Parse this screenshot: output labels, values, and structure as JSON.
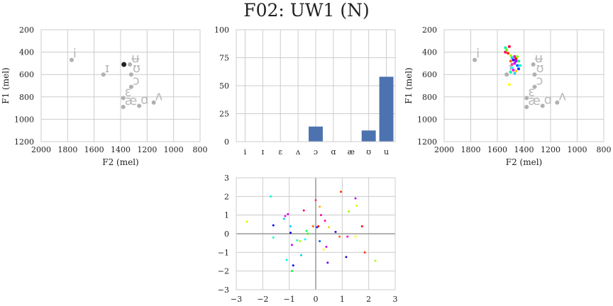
{
  "title": "F02: UW1 (N)",
  "chart_data": [
    {
      "type": "scatter",
      "name": "vowel-space-left",
      "xlabel": "F2 (mel)",
      "ylabel": "F1 (mel)",
      "xlim": [
        2000,
        800
      ],
      "ylim": [
        1200,
        200
      ],
      "xticks": [
        2000,
        1800,
        1600,
        1400,
        1200,
        1000,
        800
      ],
      "yticks": [
        200,
        400,
        600,
        800,
        1000,
        1200
      ],
      "grid": true,
      "vowels": [
        {
          "label": "i",
          "f2": 1770,
          "f1": 470
        },
        {
          "label": "ɪ",
          "f2": 1530,
          "f1": 600
        },
        {
          "label": "ʉ",
          "f2": 1330,
          "f1": 510
        },
        {
          "label": "ʊ",
          "f2": 1320,
          "f1": 600
        },
        {
          "label": "ɔ",
          "f2": 1320,
          "f1": 710
        },
        {
          "label": "ɛ",
          "f2": 1380,
          "f1": 810
        },
        {
          "label": "æ",
          "f2": 1380,
          "f1": 890
        },
        {
          "label": "ɑ",
          "f2": 1260,
          "f1": 880
        },
        {
          "label": "ʌ",
          "f2": 1150,
          "f1": 850
        }
      ],
      "highlight_point": {
        "f2": 1375,
        "f1": 510,
        "color": "#222222"
      }
    },
    {
      "type": "bar",
      "name": "vowel-distribution",
      "categories": [
        "i",
        "ɪ",
        "ɛ",
        "ʌ",
        "ɔ",
        "ɑ",
        "æ",
        "ʊ",
        "u"
      ],
      "values": [
        0,
        0,
        0,
        0,
        13.5,
        0,
        0,
        10,
        58
      ],
      "ylim": [
        0,
        100
      ],
      "yticks": [
        0,
        25,
        50,
        75,
        100
      ],
      "color": "#4c72b0",
      "grid": true
    },
    {
      "type": "scatter",
      "name": "vowel-space-right",
      "xlabel": "F2 (mel)",
      "ylabel": "F1 (mel)",
      "xlim": [
        2000,
        800
      ],
      "ylim": [
        1200,
        200
      ],
      "xticks": [
        2000,
        1800,
        1600,
        1400,
        1200,
        1000,
        800
      ],
      "yticks": [
        200,
        400,
        600,
        800,
        1000,
        1200
      ],
      "grid": true,
      "vowels": [
        {
          "label": "i",
          "f2": 1770,
          "f1": 470
        },
        {
          "label": "ɪ",
          "f2": 1530,
          "f1": 600
        },
        {
          "label": "ʉ",
          "f2": 1330,
          "f1": 510
        },
        {
          "label": "ʊ",
          "f2": 1320,
          "f1": 600
        },
        {
          "label": "ɔ",
          "f2": 1320,
          "f1": 710
        },
        {
          "label": "ɛ",
          "f2": 1380,
          "f1": 810
        },
        {
          "label": "æ",
          "f2": 1380,
          "f1": 890
        },
        {
          "label": "ɑ",
          "f2": 1260,
          "f1": 880
        },
        {
          "label": "ʌ",
          "f2": 1150,
          "f1": 850
        }
      ],
      "points": [
        {
          "f2": 1540,
          "f1": 360,
          "color": "#00ffaa"
        },
        {
          "f2": 1510,
          "f1": 350,
          "color": "#ff0033"
        },
        {
          "f2": 1520,
          "f1": 410,
          "color": "#ff3300"
        },
        {
          "f2": 1500,
          "f1": 430,
          "color": "#aaff00"
        },
        {
          "f2": 1490,
          "f1": 450,
          "color": "#00ccff"
        },
        {
          "f2": 1470,
          "f1": 440,
          "color": "#ff00aa"
        },
        {
          "f2": 1480,
          "f1": 470,
          "color": "#3300ff"
        },
        {
          "f2": 1460,
          "f1": 460,
          "color": "#ff0000"
        },
        {
          "f2": 1450,
          "f1": 440,
          "color": "#88ff00"
        },
        {
          "f2": 1440,
          "f1": 480,
          "color": "#00ff66"
        },
        {
          "f2": 1500,
          "f1": 480,
          "color": "#ff6600"
        },
        {
          "f2": 1470,
          "f1": 500,
          "color": "#cc00ff"
        },
        {
          "f2": 1450,
          "f1": 520,
          "color": "#0066ff"
        },
        {
          "f2": 1490,
          "f1": 540,
          "color": "#00ffff"
        },
        {
          "f2": 1480,
          "f1": 560,
          "color": "#ff00ff"
        },
        {
          "f2": 1500,
          "f1": 580,
          "color": "#00ff99"
        },
        {
          "f2": 1460,
          "f1": 570,
          "color": "#ffcc00"
        },
        {
          "f2": 1540,
          "f1": 400,
          "color": "#ff0066"
        },
        {
          "f2": 1530,
          "f1": 380,
          "color": "#66ff00"
        },
        {
          "f2": 1440,
          "f1": 550,
          "color": "#0033ff"
        },
        {
          "f2": 1430,
          "f1": 520,
          "color": "#00ffcc"
        },
        {
          "f2": 1470,
          "f1": 590,
          "color": "#33ccff"
        },
        {
          "f2": 1490,
          "f1": 510,
          "color": "#ff3399"
        },
        {
          "f2": 1460,
          "f1": 480,
          "color": "#9900ff"
        },
        {
          "f2": 1510,
          "f1": 690,
          "color": "#ffff00"
        }
      ]
    },
    {
      "type": "scatter",
      "name": "normalized-scatter",
      "xlim": [
        -3,
        3
      ],
      "ylim": [
        -3,
        3
      ],
      "xticks": [
        -3,
        -2,
        -1,
        0,
        1,
        2,
        3
      ],
      "yticks": [
        -3,
        -2,
        -1,
        0,
        1,
        2,
        3
      ],
      "grid": true,
      "points": [
        {
          "x": -2.6,
          "y": 0.65,
          "color": "#ccff00"
        },
        {
          "x": -1.7,
          "y": 2.0,
          "color": "#00ffcc"
        },
        {
          "x": -1.6,
          "y": 0.45,
          "color": "#0000ff"
        },
        {
          "x": -1.6,
          "y": -0.2,
          "color": "#00ffcc"
        },
        {
          "x": -1.2,
          "y": 0.8,
          "color": "#00ccff"
        },
        {
          "x": -1.15,
          "y": 0.95,
          "color": "#ff00ff"
        },
        {
          "x": -1.05,
          "y": 1.05,
          "color": "#cc00ff"
        },
        {
          "x": -1.1,
          "y": -1.4,
          "color": "#00ffcc"
        },
        {
          "x": -0.95,
          "y": 0.4,
          "color": "#00ccff"
        },
        {
          "x": -0.95,
          "y": 0.05,
          "color": "#0000cc"
        },
        {
          "x": -0.9,
          "y": -0.6,
          "color": "#cc00ff"
        },
        {
          "x": -0.9,
          "y": -2.0,
          "color": "#00ff33"
        },
        {
          "x": -0.85,
          "y": -1.7,
          "color": "#0000ff"
        },
        {
          "x": -0.7,
          "y": -0.35,
          "color": "#00ffcc"
        },
        {
          "x": -0.6,
          "y": -0.4,
          "color": "#aaff00"
        },
        {
          "x": -0.55,
          "y": -1.15,
          "color": "#00ccff"
        },
        {
          "x": -0.45,
          "y": 1.25,
          "color": "#ff0066"
        },
        {
          "x": -0.4,
          "y": -0.3,
          "color": "#00ffff"
        },
        {
          "x": -0.35,
          "y": 0.15,
          "color": "#00ff66"
        },
        {
          "x": -0.3,
          "y": 0.0,
          "color": "#33ff00"
        },
        {
          "x": -0.1,
          "y": 0.4,
          "color": "#ff6600"
        },
        {
          "x": 0.0,
          "y": 1.8,
          "color": "#ff3366"
        },
        {
          "x": 0.05,
          "y": 0.35,
          "color": "#0033ff"
        },
        {
          "x": 0.1,
          "y": 0.4,
          "color": "#ff0000"
        },
        {
          "x": 0.15,
          "y": 1.45,
          "color": "#ffaa00"
        },
        {
          "x": 0.15,
          "y": -0.4,
          "color": "#0066ff"
        },
        {
          "x": 0.2,
          "y": 1.0,
          "color": "#ff0099"
        },
        {
          "x": 0.3,
          "y": -0.85,
          "color": "#ffff00"
        },
        {
          "x": 0.35,
          "y": 0.7,
          "color": "#ff00cc"
        },
        {
          "x": 0.4,
          "y": -0.7,
          "color": "#cc00ff"
        },
        {
          "x": 0.45,
          "y": -1.55,
          "color": "#6600ff"
        },
        {
          "x": 0.5,
          "y": 0.35,
          "color": "#ffcc00"
        },
        {
          "x": 0.75,
          "y": 0.1,
          "color": "#3300ff"
        },
        {
          "x": 0.95,
          "y": 2.25,
          "color": "#ff3300"
        },
        {
          "x": 0.9,
          "y": -0.15,
          "color": "#ff6600"
        },
        {
          "x": 1.15,
          "y": -1.25,
          "color": "#3300cc"
        },
        {
          "x": 1.2,
          "y": -0.15,
          "color": "#ff00cc"
        },
        {
          "x": 1.25,
          "y": 1.2,
          "color": "#99ff00"
        },
        {
          "x": 1.5,
          "y": 1.9,
          "color": "#cc00ff"
        },
        {
          "x": 1.55,
          "y": 1.5,
          "color": "#ccff00"
        },
        {
          "x": 1.5,
          "y": -0.15,
          "color": "#ffff00"
        },
        {
          "x": 1.75,
          "y": 0.4,
          "color": "#ff0000"
        },
        {
          "x": 1.85,
          "y": -1.0,
          "color": "#ff3300"
        },
        {
          "x": 2.25,
          "y": -1.45,
          "color": "#aaff00"
        }
      ]
    }
  ]
}
